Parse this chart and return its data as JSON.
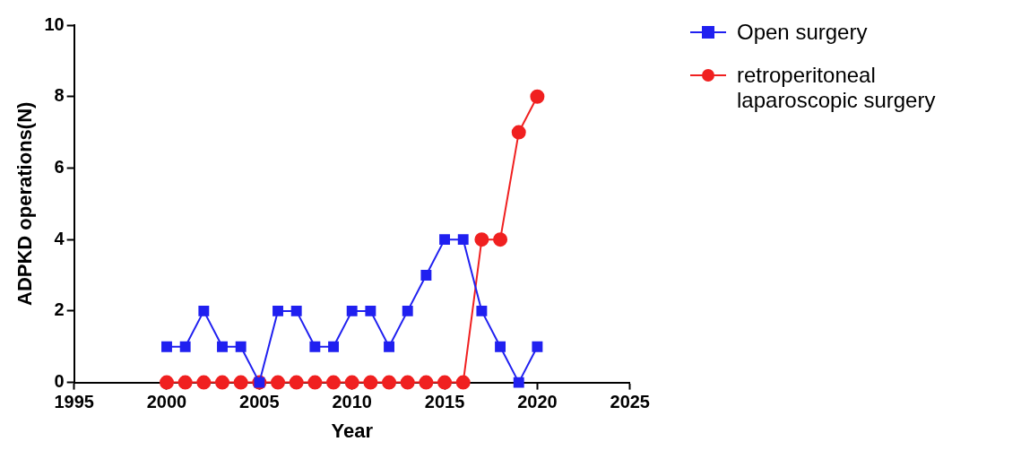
{
  "chart_data": {
    "type": "line",
    "xlabel": "Year",
    "ylabel": "ADPKD operations(N)",
    "x": [
      2000,
      2001,
      2002,
      2003,
      2004,
      2005,
      2006,
      2007,
      2008,
      2009,
      2010,
      2011,
      2012,
      2013,
      2014,
      2015,
      2016,
      2017,
      2018,
      2019,
      2020
    ],
    "xlim": [
      1995,
      2025
    ],
    "xticks": [
      1995,
      2000,
      2005,
      2010,
      2015,
      2020,
      2025
    ],
    "ylim": [
      0,
      10
    ],
    "yticks": [
      0,
      2,
      4,
      6,
      8,
      10
    ],
    "grid": false,
    "legend": "top right",
    "line_style": "solid",
    "series": [
      {
        "name": "Open surgery",
        "color": "#2020f0",
        "marker": "square",
        "values": [
          1,
          1,
          2,
          1,
          1,
          0,
          2,
          2,
          1,
          1,
          2,
          2,
          1,
          2,
          3,
          4,
          4,
          2,
          1,
          0,
          1
        ]
      },
      {
        "name": "retroperitoneal laparoscopic surgery",
        "color": "#f02020",
        "marker": "circle",
        "values": [
          0,
          0,
          0,
          0,
          0,
          0,
          0,
          0,
          0,
          0,
          0,
          0,
          0,
          0,
          0,
          0,
          0,
          4,
          4,
          7,
          8
        ]
      }
    ]
  }
}
